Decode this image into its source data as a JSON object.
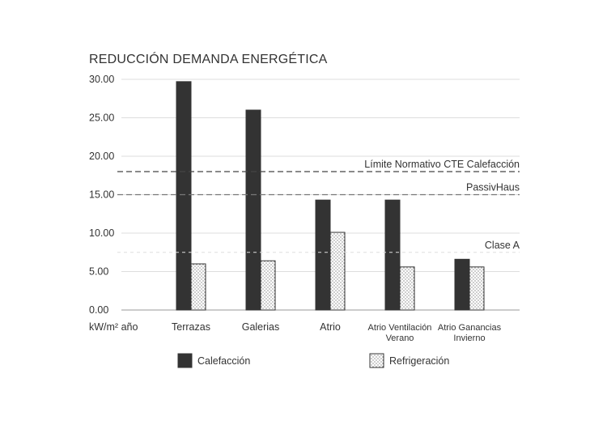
{
  "chart_data": {
    "type": "bar",
    "title": "REDUCCIÓN DEMANDA ENERGÉTICA",
    "ylabel": "kW/m² año",
    "ylim": [
      0,
      30
    ],
    "yticks": [
      "0.00",
      "5.00",
      "10.00",
      "15.00",
      "20.00",
      "25.00",
      "30.00"
    ],
    "categories": [
      {
        "lines": [
          "Terrazas"
        ]
      },
      {
        "lines": [
          "Galerias"
        ]
      },
      {
        "lines": [
          "Atrio"
        ]
      },
      {
        "lines": [
          "Atrio Ventilación",
          "Verano"
        ]
      },
      {
        "lines": [
          "Atrio Ganancias",
          "Invierno"
        ]
      }
    ],
    "series": [
      {
        "name": "Calefacción",
        "color": "#333333",
        "pattern": "solid",
        "values": [
          29.7,
          26.0,
          14.3,
          14.3,
          6.6
        ]
      },
      {
        "name": "Refrigeración",
        "color": "#ffffff",
        "pattern": "dots",
        "values": [
          6.0,
          6.4,
          10.1,
          5.6,
          5.6
        ]
      }
    ],
    "reference_lines": [
      {
        "label": "Límite Normativo CTE Calefacción",
        "value": 18.0,
        "style": "dashed-dark"
      },
      {
        "label": "PassivHaus",
        "value": 15.0,
        "style": "dashed-gray"
      },
      {
        "label": "Clase A",
        "value": 7.5,
        "style": "dashed-faint"
      }
    ],
    "legend_position": "bottom",
    "grid": true
  }
}
